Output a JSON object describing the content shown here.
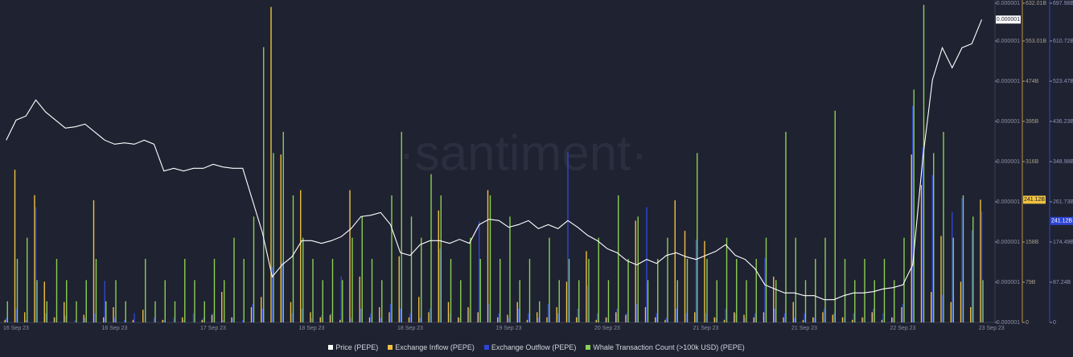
{
  "chart_data": {
    "type": "combo",
    "watermark": "·santiment·",
    "categories": [
      null,
      "16 Sep 23",
      null,
      null,
      null,
      null,
      null,
      null,
      null,
      null,
      null,
      "16 Sep 23",
      null,
      null,
      null,
      null,
      null,
      null,
      null,
      null,
      null,
      "17 Sep 23",
      null,
      null,
      null,
      null,
      null,
      null,
      null,
      null,
      null,
      "18 Sep 23",
      null,
      null,
      null,
      null,
      null,
      null,
      null,
      null,
      null,
      "18 Sep 23",
      null,
      null,
      null,
      null,
      null,
      null,
      null,
      null,
      null,
      "19 Sep 23",
      null,
      null,
      null,
      null,
      null,
      null,
      null,
      null,
      null,
      "20 Sep 23",
      null,
      null,
      null,
      null,
      null,
      null,
      null,
      null,
      null,
      "21 Sep 23",
      null,
      null,
      null,
      null,
      null,
      null,
      null,
      null,
      null,
      "21 Sep 23",
      null,
      null,
      null,
      null,
      null,
      null,
      null,
      null,
      null,
      "22 Sep 23",
      null,
      null,
      null,
      null,
      null,
      null,
      null,
      null,
      "23 Sep 23"
    ],
    "ylim": [
      6.3e-07,
      8.7e-07
    ],
    "yticks": [
      {
        "value": 6.3e-07,
        "label": "0.000001"
      },
      {
        "value": 6.6e-07,
        "label": "0.000001"
      },
      {
        "value": 6.9e-07,
        "label": "0.000001"
      },
      {
        "value": 7.2e-07,
        "label": "0.000001"
      },
      {
        "value": 7.5e-07,
        "label": "0.000001"
      },
      {
        "value": 7.8e-07,
        "label": "0.000001"
      },
      {
        "value": 8.1e-07,
        "label": "0.000001"
      },
      {
        "value": 8.4e-07,
        "label": "0.000001"
      },
      {
        "value": 8.7e-07,
        "label": "0.000001"
      }
    ],
    "y2lim": [
      0,
      632.01
    ],
    "y2ticks": [
      0,
      {
        "value": 79,
        "label": "79B"
      },
      {
        "value": 158,
        "label": "158B"
      },
      {
        "value": 316,
        "label": "316B"
      },
      {
        "value": 395,
        "label": "395B"
      },
      {
        "value": 474,
        "label": "474B"
      },
      {
        "value": 553.01,
        "label": "553.01B"
      },
      {
        "value": 632.01,
        "label": "632.01B"
      }
    ],
    "y3lim": [
      0,
      697.98
    ],
    "y3ticks": [
      0,
      {
        "value": 87.24,
        "label": "87.24B"
      },
      {
        "value": 174.49,
        "label": "174.49B"
      },
      {
        "value": 261.73,
        "label": "261.73B"
      },
      {
        "value": 348.98,
        "label": "348.98B"
      },
      {
        "value": 436.23,
        "label": "436.23B"
      },
      {
        "value": 523.47,
        "label": "523.47B"
      },
      {
        "value": 610.72,
        "label": "610.72B"
      },
      {
        "value": 697.98,
        "label": "697.98B"
      }
    ],
    "series": [
      {
        "name": "Whale Transaction Count (>100k USD) (PEPE)",
        "type": "bar",
        "color": "#8bd052",
        "values": [
          1,
          3,
          4,
          2,
          1,
          3,
          2,
          1,
          2,
          3,
          1,
          2,
          1,
          0,
          3,
          1,
          2,
          1,
          3,
          2,
          1,
          3,
          2,
          4,
          3,
          5,
          13,
          8,
          9,
          6,
          4,
          3,
          2,
          3,
          2,
          4,
          5,
          3,
          2,
          6,
          9,
          5,
          4,
          7,
          6,
          3,
          2,
          4,
          3,
          6,
          3,
          5,
          2,
          3,
          1,
          4,
          2,
          3,
          2,
          3,
          4,
          2,
          6,
          3,
          5,
          2,
          3,
          4,
          2,
          3,
          8,
          3,
          2,
          4,
          3,
          2,
          3,
          4,
          2,
          9,
          4,
          2,
          3,
          4,
          10,
          3,
          2,
          3,
          2,
          3,
          2,
          4,
          11,
          15,
          8,
          9,
          4,
          6,
          5,
          2,
          null
        ]
      },
      {
        "name": "Exchange Inflow (PEPE)",
        "type": "bar",
        "axis": "y2",
        "color": "#f1c13f",
        "last_label": "241.12B",
        "values": [
          5,
          300,
          20,
          250,
          80,
          10,
          40,
          0,
          15,
          240,
          10,
          30,
          0,
          5,
          25,
          0,
          5,
          0,
          10,
          0,
          5,
          15,
          60,
          10,
          0,
          30,
          50,
          620,
          330,
          40,
          260,
          20,
          10,
          15,
          5,
          260,
          90,
          10,
          30,
          20,
          130,
          10,
          50,
          20,
          220,
          40,
          10,
          30,
          20,
          260,
          10,
          15,
          40,
          5,
          20,
          10,
          30,
          80,
          10,
          140,
          5,
          10,
          20,
          15,
          200,
          30,
          10,
          5,
          240,
          180,
          20,
          160,
          10,
          5,
          20,
          15,
          10,
          20,
          90,
          10,
          40,
          5,
          10,
          20,
          15,
          10,
          5,
          10,
          20,
          5,
          10,
          30,
          330,
          270,
          60,
          170,
          40,
          80,
          30,
          241.12,
          null
        ]
      },
      {
        "name": "Exchange Outflow (PEPE)",
        "type": "bar",
        "axis": "y3",
        "color": "#2e46d4",
        "last_label": "241.12B",
        "values": [
          10,
          30,
          5,
          250,
          20,
          10,
          15,
          5,
          10,
          20,
          90,
          10,
          5,
          20,
          0,
          10,
          5,
          10,
          5,
          20,
          10,
          20,
          5,
          10,
          5,
          40,
          30,
          120,
          130,
          20,
          30,
          10,
          15,
          20,
          100,
          10,
          30,
          20,
          10,
          40,
          30,
          20,
          10,
          30,
          160,
          20,
          10,
          30,
          220,
          40,
          20,
          10,
          30,
          20,
          10,
          40,
          20,
          370,
          30,
          80,
          20,
          10,
          30,
          20,
          40,
          250,
          20,
          10,
          30,
          20,
          180,
          20,
          10,
          30,
          20,
          10,
          20,
          140,
          30,
          20,
          10,
          20,
          10,
          30,
          20,
          10,
          20,
          10,
          30,
          20,
          10,
          40,
          470,
          380,
          320,
          60,
          240,
          270,
          200,
          241.12,
          null
        ]
      },
      {
        "name": "Price (PEPE)",
        "type": "line",
        "axis": "y",
        "color": "#ffffff",
        "last_label": "0.000001",
        "values": [
          7.66e-07,
          7.81e-07,
          7.84e-07,
          7.96e-07,
          7.87e-07,
          7.81e-07,
          7.75e-07,
          7.76e-07,
          7.78e-07,
          7.72e-07,
          7.66e-07,
          7.63e-07,
          7.64e-07,
          7.63e-07,
          7.66e-07,
          7.63e-07,
          7.43e-07,
          7.45e-07,
          7.43e-07,
          7.45e-07,
          7.45e-07,
          7.48e-07,
          7.46e-07,
          7.45e-07,
          7.45e-07,
          7.21e-07,
          6.97e-07,
          6.64e-07,
          6.73e-07,
          6.79e-07,
          6.91e-07,
          6.91e-07,
          6.89e-07,
          6.91e-07,
          6.94e-07,
          7e-07,
          7.09e-07,
          7.1e-07,
          7.12e-07,
          7.03e-07,
          6.82e-07,
          6.8e-07,
          6.88e-07,
          6.91e-07,
          6.91e-07,
          6.89e-07,
          6.92e-07,
          6.89e-07,
          7.03e-07,
          7.07e-07,
          7.06e-07,
          7.01e-07,
          7.03e-07,
          7.06e-07,
          7e-07,
          7.03e-07,
          7e-07,
          7.06e-07,
          7.01e-07,
          6.95e-07,
          6.91e-07,
          6.85e-07,
          6.82e-07,
          6.76e-07,
          6.73e-07,
          6.77e-07,
          6.74e-07,
          6.8e-07,
          6.82e-07,
          6.79e-07,
          6.77e-07,
          6.8e-07,
          6.83e-07,
          6.88e-07,
          6.8e-07,
          6.77e-07,
          6.7e-07,
          6.58e-07,
          6.55e-07,
          6.52e-07,
          6.52e-07,
          6.5e-07,
          6.5e-07,
          6.47e-07,
          6.47e-07,
          6.5e-07,
          6.52e-07,
          6.52e-07,
          6.53e-07,
          6.55e-07,
          6.56e-07,
          6.58e-07,
          6.73e-07,
          7.51e-07,
          8.11e-07,
          8.35e-07,
          8.2e-07,
          8.35e-07,
          8.38e-07,
          8.56e-07,
          null
        ]
      }
    ],
    "legend_order": [
      3,
      1,
      2,
      0
    ]
  }
}
